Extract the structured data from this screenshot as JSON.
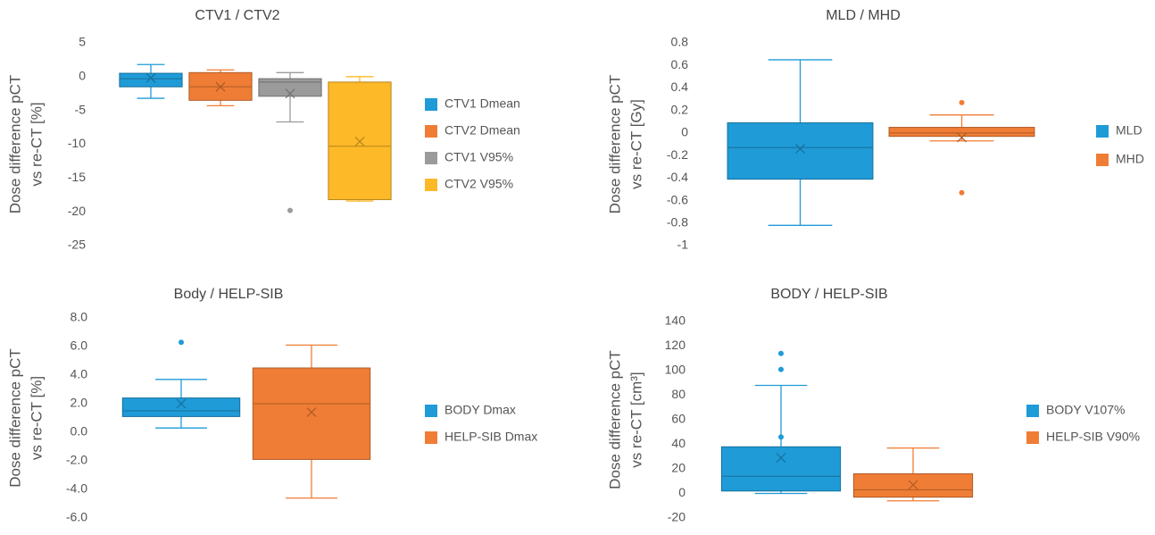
{
  "chart_data": [
    {
      "type": "box",
      "title": "CTV1 / CTV2",
      "ylabel": [
        "Dose difference pCT",
        "vs re-CT [%]"
      ],
      "ylim": [
        -25,
        5
      ],
      "yticks": [
        -25,
        -20,
        -15,
        -10,
        -5,
        0,
        5
      ],
      "series": [
        {
          "name": "CTV1 Dmean",
          "color": "#1f9bd7",
          "min": -3.2,
          "q1": -1.5,
          "median": -0.3,
          "q3": 0.5,
          "max": 1.8,
          "mean": -0.2,
          "outliers": []
        },
        {
          "name": "CTV2 Dmean",
          "color": "#f07d35",
          "min": -4.3,
          "q1": -3.5,
          "median": -1.5,
          "q3": 0.6,
          "max": 1.0,
          "mean": -1.5,
          "outliers": []
        },
        {
          "name": "CTV1 V95%",
          "color": "#9b9b9b",
          "min": -6.7,
          "q1": -2.9,
          "median": -0.8,
          "q3": -0.3,
          "max": 0.6,
          "mean": -2.5,
          "outliers": [
            -19.8
          ]
        },
        {
          "name": "CTV2 V95%",
          "color": "#fdb927",
          "min": -18.4,
          "q1": -18.2,
          "median": -10.3,
          "q3": -0.8,
          "max": 0,
          "mean": -9.6,
          "outliers": []
        }
      ]
    },
    {
      "type": "box",
      "title": "MLD / MHD",
      "ylabel": [
        "Dose difference pCT",
        "vs re-CT [Gy]"
      ],
      "ylim": [
        -1,
        0.8
      ],
      "yticks": [
        -1,
        -0.8,
        -0.6,
        -0.4,
        -0.2,
        0,
        0.2,
        0.4,
        0.6,
        0.8
      ],
      "series": [
        {
          "name": "MLD",
          "color": "#1f9bd7",
          "min": -0.82,
          "q1": -0.41,
          "median": -0.13,
          "q3": 0.09,
          "max": 0.65,
          "mean": -0.14,
          "outliers": []
        },
        {
          "name": "MHD",
          "color": "#f07d35",
          "min": -0.07,
          "q1": -0.03,
          "median": 0,
          "q3": 0.05,
          "max": 0.16,
          "mean": -0.04,
          "outliers": [
            0.27,
            -0.53
          ]
        }
      ]
    },
    {
      "type": "box",
      "title": "Body / HELP-SIB",
      "ylabel": [
        "Dose difference pCT",
        "vs re-CT [%]"
      ],
      "ylim": [
        -6,
        8
      ],
      "yticks": [
        {
          "value": -6,
          "label": "-6.0"
        },
        {
          "value": -4,
          "label": "-4.0"
        },
        {
          "value": -2,
          "label": "-2.0"
        },
        {
          "value": 0,
          "label": "0.0"
        },
        {
          "value": 2,
          "label": "2.0"
        },
        {
          "value": 4,
          "label": "4.0"
        },
        {
          "value": 6,
          "label": "6.0"
        },
        {
          "value": 8,
          "label": "8.0"
        }
      ],
      "series": [
        {
          "name": "BODY Dmax",
          "color": "#1f9bd7",
          "min": 0.3,
          "q1": 1.1,
          "median": 1.5,
          "q3": 2.4,
          "max": 3.7,
          "mean": 2.0,
          "outliers": [
            6.3
          ]
        },
        {
          "name": "HELP-SIB Dmax",
          "color": "#f07d35",
          "min": -4.6,
          "q1": -1.9,
          "median": 2.0,
          "q3": 4.5,
          "max": 6.1,
          "mean": 1.4,
          "outliers": []
        }
      ]
    },
    {
      "type": "box",
      "title": "BODY / HELP-SIB",
      "ylabel": [
        "Dose difference pCT",
        "vs re-CT [cm³]"
      ],
      "ylim": [
        -20,
        140
      ],
      "yticks": [
        -20,
        0,
        20,
        40,
        60,
        80,
        100,
        120,
        140
      ],
      "series": [
        {
          "name": "BODY V107%",
          "color": "#1f9bd7",
          "min": 0,
          "q1": 2,
          "median": 14,
          "q3": 38,
          "max": 88,
          "mean": 29,
          "outliers": [
            114,
            101,
            46
          ]
        },
        {
          "name": "HELP-SIB V90%",
          "color": "#f07d35",
          "min": -6,
          "q1": -3,
          "median": 3,
          "q3": 16,
          "max": 37,
          "mean": 7,
          "outliers": []
        }
      ]
    }
  ]
}
